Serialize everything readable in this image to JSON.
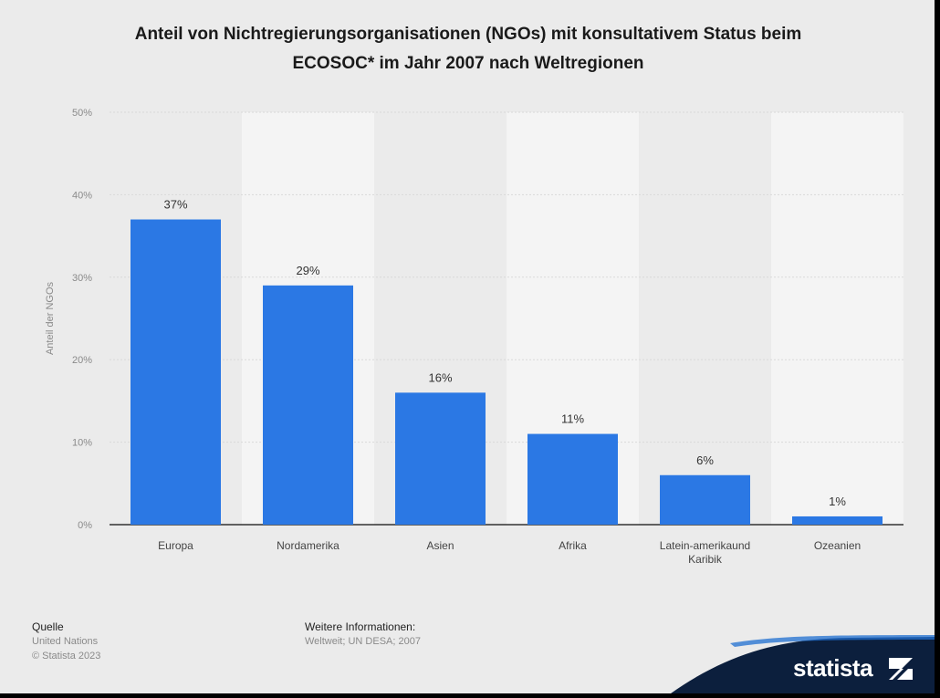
{
  "chart_data": {
    "type": "bar",
    "title": "Anteil von Nichtregierungsorganisationen (NGOs) mit konsultativem Status beim ECOSOC* im Jahr 2007 nach Weltregionen",
    "ylabel": "Anteil der NGOs",
    "xlabel": "",
    "categories": [
      "Europa",
      "Nordamerika",
      "Asien",
      "Afrika",
      "Latein-amerikaund Karibik",
      "Ozeanien"
    ],
    "category_lines": [
      [
        "Europa"
      ],
      [
        "Nordamerika"
      ],
      [
        "Asien"
      ],
      [
        "Afrika"
      ],
      [
        "Latein-amerikaund",
        "Karibik"
      ],
      [
        "Ozeanien"
      ]
    ],
    "values": [
      37,
      29,
      16,
      11,
      6,
      1
    ],
    "value_labels": [
      "37%",
      "29%",
      "16%",
      "11%",
      "6%",
      "1%"
    ],
    "ylim": [
      0,
      50
    ],
    "yticks": [
      0,
      10,
      20,
      30,
      40,
      50
    ],
    "ytick_labels": [
      "0%",
      "10%",
      "20%",
      "30%",
      "40%",
      "50%"
    ],
    "grid": true,
    "legend": "none",
    "bar_color": "#2b78e4"
  },
  "footer": {
    "source_heading": "Quelle",
    "source_lines": [
      "United Nations",
      "© Statista 2023"
    ],
    "info_heading": "Weitere Informationen:",
    "info_text": "Weltweit; UN DESA; 2007"
  },
  "logo": {
    "text": "statista",
    "color": "#0c1f3d"
  }
}
